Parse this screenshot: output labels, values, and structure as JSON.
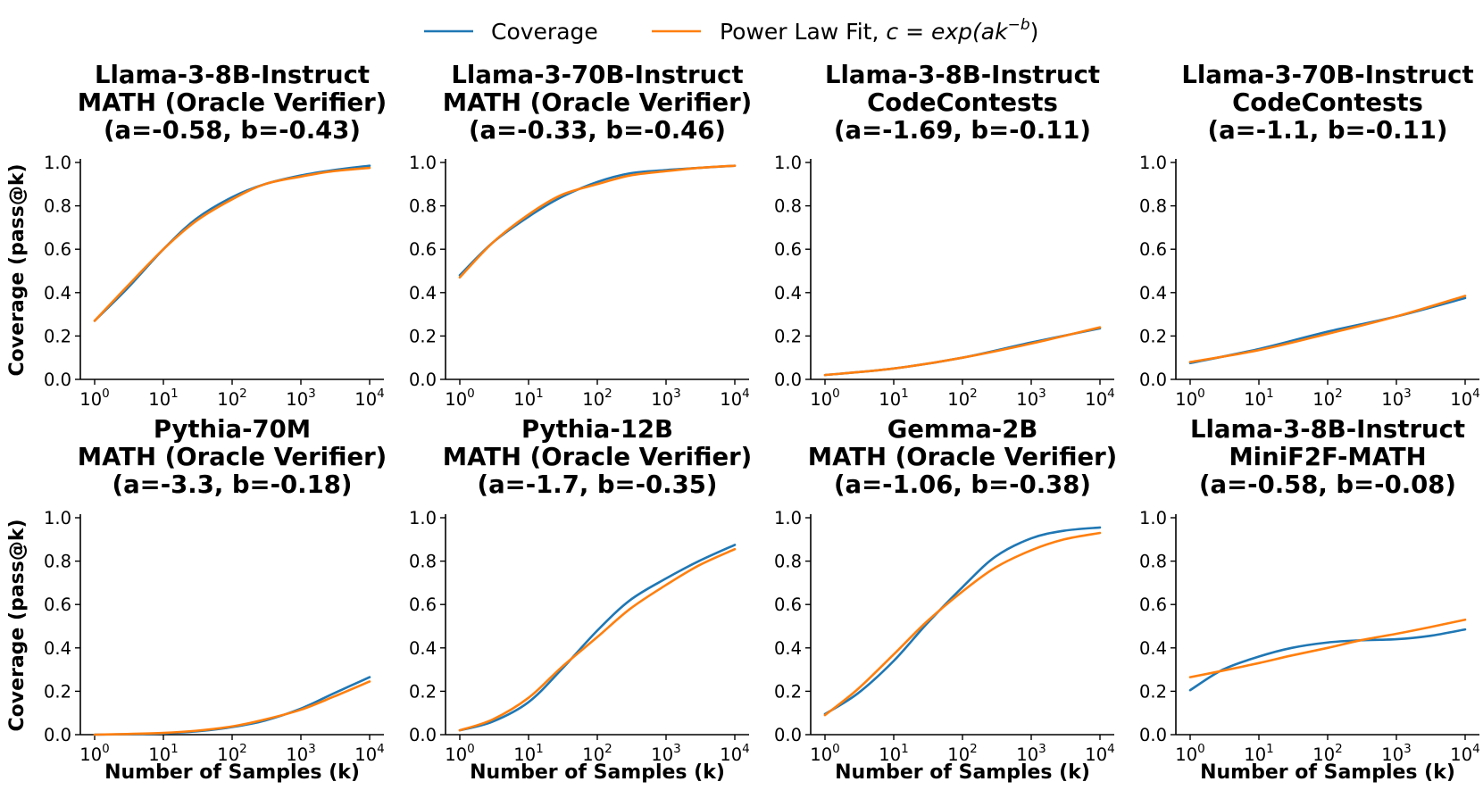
{
  "legend": {
    "coverage_label": "Coverage",
    "fit_label_prefix": "Power Law Fit, ",
    "fit_label_math": "c = exp(ak",
    "fit_label_sup": "−b",
    "fit_label_close": ")"
  },
  "colors": {
    "coverage": "#1f77b4",
    "fit": "#ff7f0e"
  },
  "xlabel": "Number of Samples (k)",
  "ylabel": "Coverage (pass@k)",
  "chart_data": [
    {
      "type": "line",
      "title": [
        "Llama-3-8B-Instruct",
        "MATH (Oracle Verifier)",
        "(a=-0.58, b=-0.43)"
      ],
      "x": [
        1,
        3,
        10,
        30,
        100,
        300,
        1000,
        3000,
        10000
      ],
      "series": [
        {
          "name": "Coverage",
          "values": [
            0.27,
            0.42,
            0.6,
            0.74,
            0.84,
            0.9,
            0.94,
            0.965,
            0.985
          ]
        },
        {
          "name": "Power Law Fit",
          "values": [
            0.27,
            0.43,
            0.6,
            0.73,
            0.83,
            0.9,
            0.935,
            0.96,
            0.975
          ]
        }
      ],
      "xlim": [
        1,
        10000
      ],
      "ylim": [
        0,
        1
      ],
      "xticks": [
        "0",
        "1",
        "2",
        "3",
        "4"
      ],
      "yticks": [
        "0.0",
        "0.2",
        "0.4",
        "0.6",
        "0.8",
        "1.0"
      ],
      "show_xlabel": false,
      "show_ylabel": true
    },
    {
      "type": "line",
      "title": [
        "Llama-3-70B-Instruct",
        "MATH (Oracle Verifier)",
        "(a=-0.33, b=-0.46)"
      ],
      "x": [
        1,
        3,
        10,
        30,
        100,
        300,
        1000,
        3000,
        10000
      ],
      "series": [
        {
          "name": "Coverage",
          "values": [
            0.48,
            0.63,
            0.75,
            0.84,
            0.91,
            0.95,
            0.965,
            0.975,
            0.985
          ]
        },
        {
          "name": "Power Law Fit",
          "values": [
            0.47,
            0.63,
            0.76,
            0.85,
            0.9,
            0.94,
            0.96,
            0.975,
            0.985
          ]
        }
      ],
      "xlim": [
        1,
        10000
      ],
      "ylim": [
        0,
        1
      ],
      "xticks": [
        "0",
        "1",
        "2",
        "3",
        "4"
      ],
      "yticks": [
        "0.0",
        "0.2",
        "0.4",
        "0.6",
        "0.8",
        "1.0"
      ],
      "show_xlabel": false,
      "show_ylabel": false
    },
    {
      "type": "line",
      "title": [
        "Llama-3-8B-Instruct",
        "CodeContests",
        "(a=-1.69, b=-0.11)"
      ],
      "x": [
        1,
        10,
        100,
        1000,
        10000
      ],
      "series": [
        {
          "name": "Coverage",
          "values": [
            0.02,
            0.05,
            0.1,
            0.17,
            0.235
          ]
        },
        {
          "name": "Power Law Fit",
          "values": [
            0.02,
            0.05,
            0.1,
            0.165,
            0.24
          ]
        }
      ],
      "xlim": [
        1,
        10000
      ],
      "ylim": [
        0,
        1
      ],
      "xticks": [
        "0",
        "1",
        "2",
        "3",
        "4"
      ],
      "yticks": [
        "0.0",
        "0.2",
        "0.4",
        "0.6",
        "0.8",
        "1.0"
      ],
      "show_xlabel": false,
      "show_ylabel": false
    },
    {
      "type": "line",
      "title": [
        "Llama-3-70B-Instruct",
        "CodeContests",
        "(a=-1.1, b=-0.11)"
      ],
      "x": [
        1,
        10,
        100,
        1000,
        10000
      ],
      "series": [
        {
          "name": "Coverage",
          "values": [
            0.075,
            0.14,
            0.22,
            0.29,
            0.375
          ]
        },
        {
          "name": "Power Law Fit",
          "values": [
            0.08,
            0.135,
            0.21,
            0.29,
            0.385
          ]
        }
      ],
      "xlim": [
        1,
        10000
      ],
      "ylim": [
        0,
        1
      ],
      "xticks": [
        "0",
        "1",
        "2",
        "3",
        "4"
      ],
      "yticks": [
        "0.0",
        "0.2",
        "0.4",
        "0.6",
        "0.8",
        "1.0"
      ],
      "show_xlabel": false,
      "show_ylabel": false
    },
    {
      "type": "line",
      "title": [
        "Pythia-70M",
        "MATH (Oracle Verifier)",
        "(a=-3.3, b=-0.18)"
      ],
      "x": [
        1,
        3,
        10,
        30,
        100,
        300,
        1000,
        3000,
        10000
      ],
      "series": [
        {
          "name": "Coverage",
          "values": [
            0.0,
            0.002,
            0.006,
            0.015,
            0.035,
            0.065,
            0.12,
            0.19,
            0.265
          ]
        },
        {
          "name": "Power Law Fit",
          "values": [
            0.0,
            0.003,
            0.008,
            0.018,
            0.038,
            0.07,
            0.115,
            0.175,
            0.245
          ]
        }
      ],
      "xlim": [
        1,
        10000
      ],
      "ylim": [
        0,
        1
      ],
      "xticks": [
        "0",
        "1",
        "2",
        "3",
        "4"
      ],
      "yticks": [
        "0.0",
        "0.2",
        "0.4",
        "0.6",
        "0.8",
        "1.0"
      ],
      "show_xlabel": true,
      "show_ylabel": true
    },
    {
      "type": "line",
      "title": [
        "Pythia-12B",
        "MATH (Oracle Verifier)",
        "(a=-1.7, b=-0.35)"
      ],
      "x": [
        1,
        3,
        10,
        30,
        100,
        300,
        1000,
        3000,
        10000
      ],
      "series": [
        {
          "name": "Coverage",
          "values": [
            0.02,
            0.06,
            0.15,
            0.3,
            0.48,
            0.62,
            0.72,
            0.8,
            0.875
          ]
        },
        {
          "name": "Power Law Fit",
          "values": [
            0.02,
            0.07,
            0.17,
            0.31,
            0.45,
            0.58,
            0.69,
            0.78,
            0.855
          ]
        }
      ],
      "xlim": [
        1,
        10000
      ],
      "ylim": [
        0,
        1
      ],
      "xticks": [
        "0",
        "1",
        "2",
        "3",
        "4"
      ],
      "yticks": [
        "0.0",
        "0.2",
        "0.4",
        "0.6",
        "0.8",
        "1.0"
      ],
      "show_xlabel": true,
      "show_ylabel": false
    },
    {
      "type": "line",
      "title": [
        "Gemma-2B",
        "MATH (Oracle Verifier)",
        "(a=-1.06, b=-0.38)"
      ],
      "x": [
        1,
        3,
        10,
        30,
        100,
        300,
        1000,
        3000,
        10000
      ],
      "series": [
        {
          "name": "Coverage",
          "values": [
            0.095,
            0.19,
            0.34,
            0.51,
            0.68,
            0.82,
            0.905,
            0.94,
            0.955
          ]
        },
        {
          "name": "Power Law Fit",
          "values": [
            0.09,
            0.21,
            0.37,
            0.52,
            0.66,
            0.77,
            0.85,
            0.9,
            0.93
          ]
        }
      ],
      "xlim": [
        1,
        10000
      ],
      "ylim": [
        0,
        1
      ],
      "xticks": [
        "0",
        "1",
        "2",
        "3",
        "4"
      ],
      "yticks": [
        "0.0",
        "0.2",
        "0.4",
        "0.6",
        "0.8",
        "1.0"
      ],
      "show_xlabel": true,
      "show_ylabel": false
    },
    {
      "type": "line",
      "title": [
        "Llama-3-8B-Instruct",
        "MiniF2F-MATH",
        "(a=-0.58, b=-0.08)"
      ],
      "x": [
        1,
        3,
        10,
        30,
        100,
        300,
        1000,
        3000,
        10000
      ],
      "series": [
        {
          "name": "Coverage",
          "values": [
            0.205,
            0.3,
            0.36,
            0.4,
            0.425,
            0.435,
            0.44,
            0.455,
            0.485
          ]
        },
        {
          "name": "Power Law Fit",
          "values": [
            0.265,
            0.295,
            0.33,
            0.365,
            0.4,
            0.435,
            0.465,
            0.495,
            0.53
          ]
        }
      ],
      "xlim": [
        1,
        10000
      ],
      "ylim": [
        0,
        1
      ],
      "xticks": [
        "0",
        "1",
        "2",
        "3",
        "4"
      ],
      "yticks": [
        "0.0",
        "0.2",
        "0.4",
        "0.6",
        "0.8",
        "1.0"
      ],
      "show_xlabel": true,
      "show_ylabel": false
    }
  ]
}
